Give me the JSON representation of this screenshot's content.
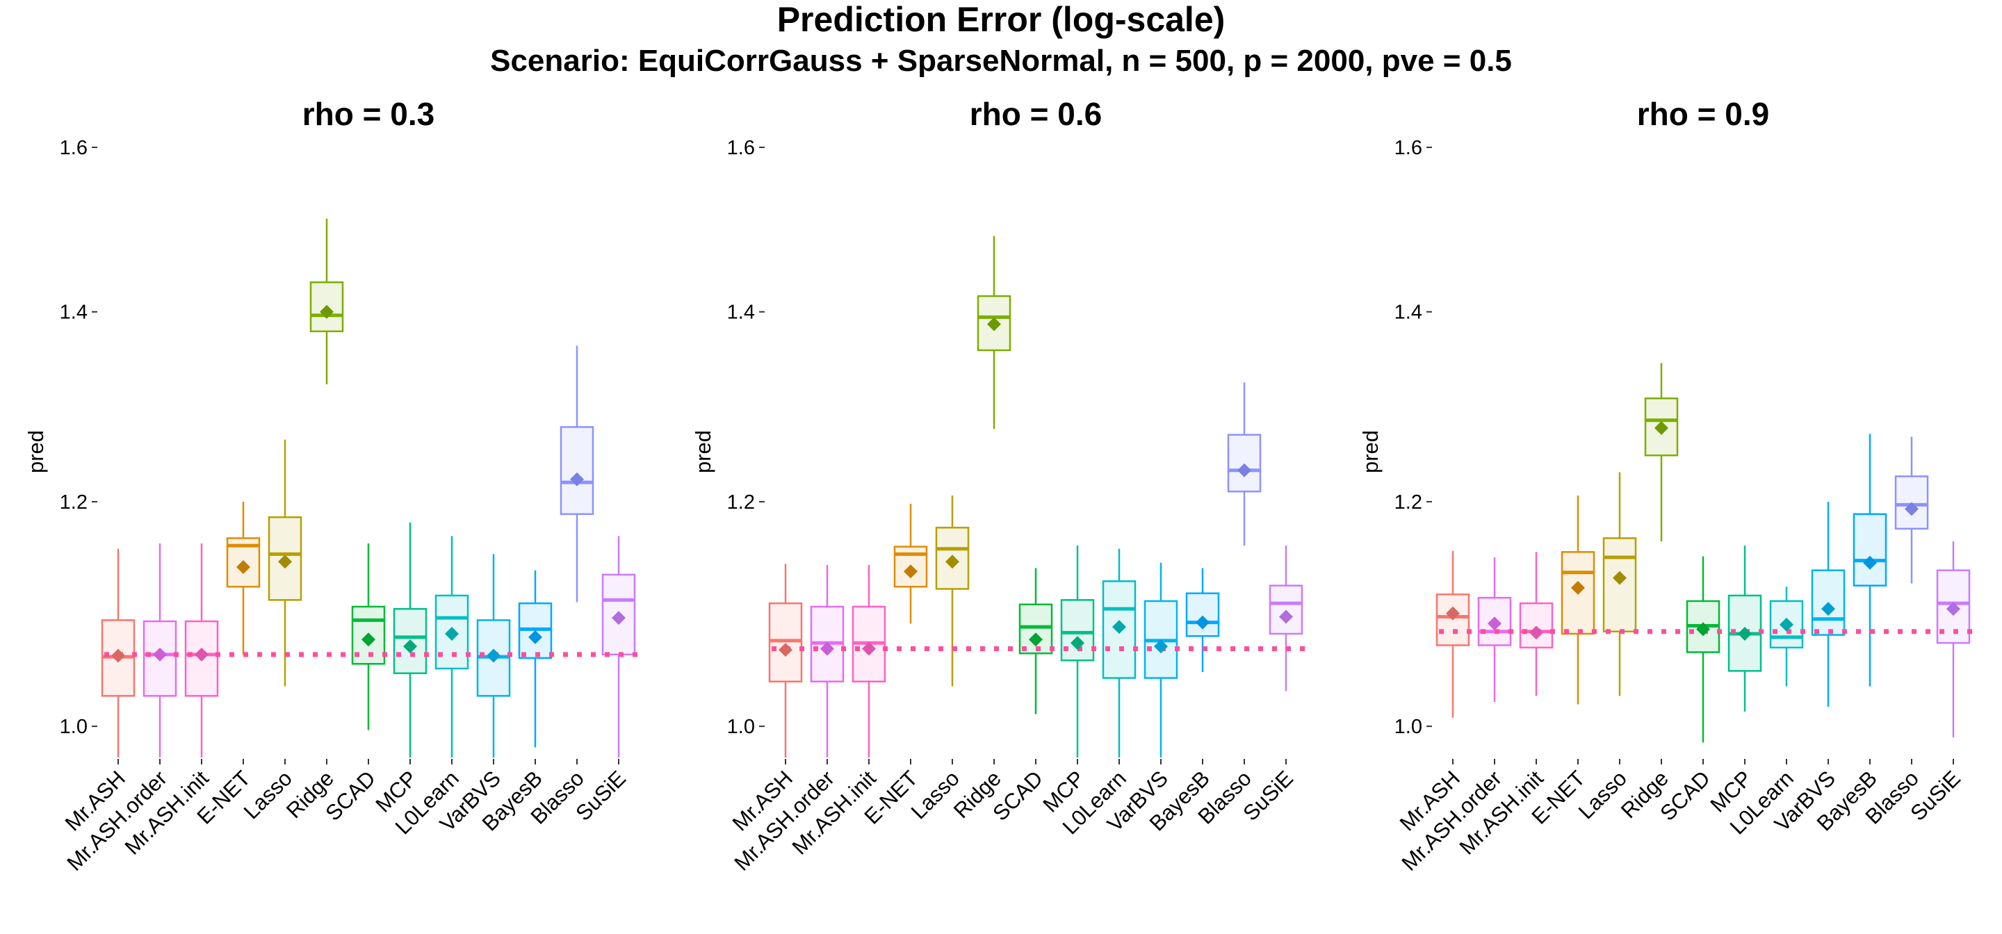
{
  "title": "Prediction Error (log-scale)",
  "subtitle": "Scenario: EquiCorrGauss + SparseNormal, n = 500, p = 2000, pve = 0.5",
  "chart_data": {
    "type": "box",
    "ylabel": "pred",
    "yscale": "log",
    "yticks": [
      1.0,
      1.2,
      1.4,
      1.6
    ],
    "ylim": [
      0.975,
      1.62
    ],
    "grid": false,
    "legend": "none",
    "categories": [
      "Mr.ASH",
      "Mr.ASH.order",
      "Mr.ASH.init",
      "E-NET",
      "Lasso",
      "Ridge",
      "SCAD",
      "MCP",
      "L0Learn",
      "VarBVS",
      "BayesB",
      "Blasso",
      "SuSiE"
    ],
    "colors": [
      "#F8766D",
      "#E76BF3",
      "#FF61C3",
      "#DE8C00",
      "#B79F00",
      "#7CAE00",
      "#00BA38",
      "#00C08B",
      "#00BFC4",
      "#00B4F0",
      "#00A9FF",
      "#8B93FF",
      "#C77CFF"
    ],
    "reference_line_color": "#FF4D9D",
    "panels": [
      {
        "title": "rho = 0.3",
        "reference_value": 1.06,
        "boxes": [
          {
            "min": 0.975,
            "q1": 1.025,
            "median": 1.058,
            "q3": 1.09,
            "max": 1.155,
            "mean": 1.059
          },
          {
            "min": 0.975,
            "q1": 1.025,
            "median": 1.06,
            "q3": 1.089,
            "max": 1.16,
            "mean": 1.06
          },
          {
            "min": 0.975,
            "q1": 1.025,
            "median": 1.06,
            "q3": 1.089,
            "max": 1.16,
            "mean": 1.06
          },
          {
            "min": 1.06,
            "q1": 1.12,
            "median": 1.158,
            "q3": 1.165,
            "max": 1.2,
            "mean": 1.138
          },
          {
            "min": 1.033,
            "q1": 1.108,
            "median": 1.15,
            "q3": 1.185,
            "max": 1.262,
            "mean": 1.143
          },
          {
            "min": 1.32,
            "q1": 1.378,
            "median": 1.396,
            "q3": 1.434,
            "max": 1.51,
            "mean": 1.4
          },
          {
            "min": 0.997,
            "q1": 1.052,
            "median": 1.09,
            "q3": 1.102,
            "max": 1.16,
            "mean": 1.073
          },
          {
            "min": 0.975,
            "q1": 1.044,
            "median": 1.075,
            "q3": 1.1,
            "max": 1.18,
            "mean": 1.067
          },
          {
            "min": 0.975,
            "q1": 1.048,
            "median": 1.092,
            "q3": 1.112,
            "max": 1.167,
            "mean": 1.078
          },
          {
            "min": 0.975,
            "q1": 1.025,
            "median": 1.058,
            "q3": 1.09,
            "max": 1.15,
            "mean": 1.059
          },
          {
            "min": 0.983,
            "q1": 1.057,
            "median": 1.082,
            "q3": 1.105,
            "max": 1.135,
            "mean": 1.075
          },
          {
            "min": 1.106,
            "q1": 1.188,
            "median": 1.219,
            "q3": 1.275,
            "max": 1.362,
            "mean": 1.222
          },
          {
            "min": 0.975,
            "q1": 1.06,
            "median": 1.108,
            "q3": 1.131,
            "max": 1.167,
            "mean": 1.092
          }
        ]
      },
      {
        "title": "rho = 0.6",
        "reference_value": 1.065,
        "boxes": [
          {
            "min": 0.975,
            "q1": 1.037,
            "median": 1.072,
            "q3": 1.105,
            "max": 1.141,
            "mean": 1.064
          },
          {
            "min": 0.975,
            "q1": 1.037,
            "median": 1.07,
            "q3": 1.102,
            "max": 1.14,
            "mean": 1.065
          },
          {
            "min": 0.975,
            "q1": 1.037,
            "median": 1.07,
            "q3": 1.102,
            "max": 1.14,
            "mean": 1.065
          },
          {
            "min": 1.087,
            "q1": 1.12,
            "median": 1.15,
            "q3": 1.157,
            "max": 1.198,
            "mean": 1.134
          },
          {
            "min": 1.033,
            "q1": 1.118,
            "median": 1.155,
            "q3": 1.175,
            "max": 1.206,
            "mean": 1.143
          },
          {
            "min": 1.273,
            "q1": 1.357,
            "median": 1.394,
            "q3": 1.418,
            "max": 1.489,
            "mean": 1.386
          },
          {
            "min": 1.01,
            "q1": 1.061,
            "median": 1.084,
            "q3": 1.104,
            "max": 1.137,
            "mean": 1.073
          },
          {
            "min": 0.975,
            "q1": 1.055,
            "median": 1.079,
            "q3": 1.108,
            "max": 1.158,
            "mean": 1.07
          },
          {
            "min": 0.975,
            "q1": 1.04,
            "median": 1.1,
            "q3": 1.125,
            "max": 1.155,
            "mean": 1.084
          },
          {
            "min": 0.975,
            "q1": 1.04,
            "median": 1.072,
            "q3": 1.107,
            "max": 1.142,
            "mean": 1.067
          },
          {
            "min": 1.045,
            "q1": 1.076,
            "median": 1.088,
            "q3": 1.114,
            "max": 1.137,
            "mean": 1.088
          },
          {
            "min": 1.158,
            "q1": 1.21,
            "median": 1.231,
            "q3": 1.267,
            "max": 1.322,
            "mean": 1.231
          },
          {
            "min": 1.029,
            "q1": 1.078,
            "median": 1.105,
            "q3": 1.121,
            "max": 1.158,
            "mean": 1.093
          }
        ]
      },
      {
        "title": "rho = 0.9",
        "reference_value": 1.08,
        "boxes": [
          {
            "min": 1.007,
            "q1": 1.068,
            "median": 1.093,
            "q3": 1.113,
            "max": 1.153,
            "mean": 1.096
          },
          {
            "min": 1.02,
            "q1": 1.068,
            "median": 1.08,
            "q3": 1.11,
            "max": 1.147,
            "mean": 1.087
          },
          {
            "min": 1.025,
            "q1": 1.066,
            "median": 1.08,
            "q3": 1.105,
            "max": 1.152,
            "mean": 1.079
          },
          {
            "min": 1.018,
            "q1": 1.078,
            "median": 1.133,
            "q3": 1.152,
            "max": 1.206,
            "mean": 1.119
          },
          {
            "min": 1.025,
            "q1": 1.08,
            "median": 1.147,
            "q3": 1.165,
            "max": 1.229,
            "mean": 1.128
          },
          {
            "min": 1.162,
            "q1": 1.246,
            "median": 1.282,
            "q3": 1.305,
            "max": 1.343,
            "mean": 1.274
          },
          {
            "min": 0.987,
            "q1": 1.062,
            "median": 1.085,
            "q3": 1.107,
            "max": 1.148,
            "mean": 1.082
          },
          {
            "min": 1.012,
            "q1": 1.046,
            "median": 1.078,
            "q3": 1.112,
            "max": 1.158,
            "mean": 1.078
          },
          {
            "min": 1.033,
            "q1": 1.066,
            "median": 1.075,
            "q3": 1.107,
            "max": 1.12,
            "mean": 1.086
          },
          {
            "min": 1.016,
            "q1": 1.077,
            "median": 1.091,
            "q3": 1.135,
            "max": 1.2,
            "mean": 1.1
          },
          {
            "min": 1.033,
            "q1": 1.121,
            "median": 1.144,
            "q3": 1.188,
            "max": 1.268,
            "mean": 1.142
          },
          {
            "min": 1.123,
            "q1": 1.174,
            "median": 1.197,
            "q3": 1.225,
            "max": 1.265,
            "mean": 1.193
          },
          {
            "min": 0.991,
            "q1": 1.07,
            "median": 1.105,
            "q3": 1.135,
            "max": 1.162,
            "mean": 1.1
          }
        ]
      }
    ]
  }
}
